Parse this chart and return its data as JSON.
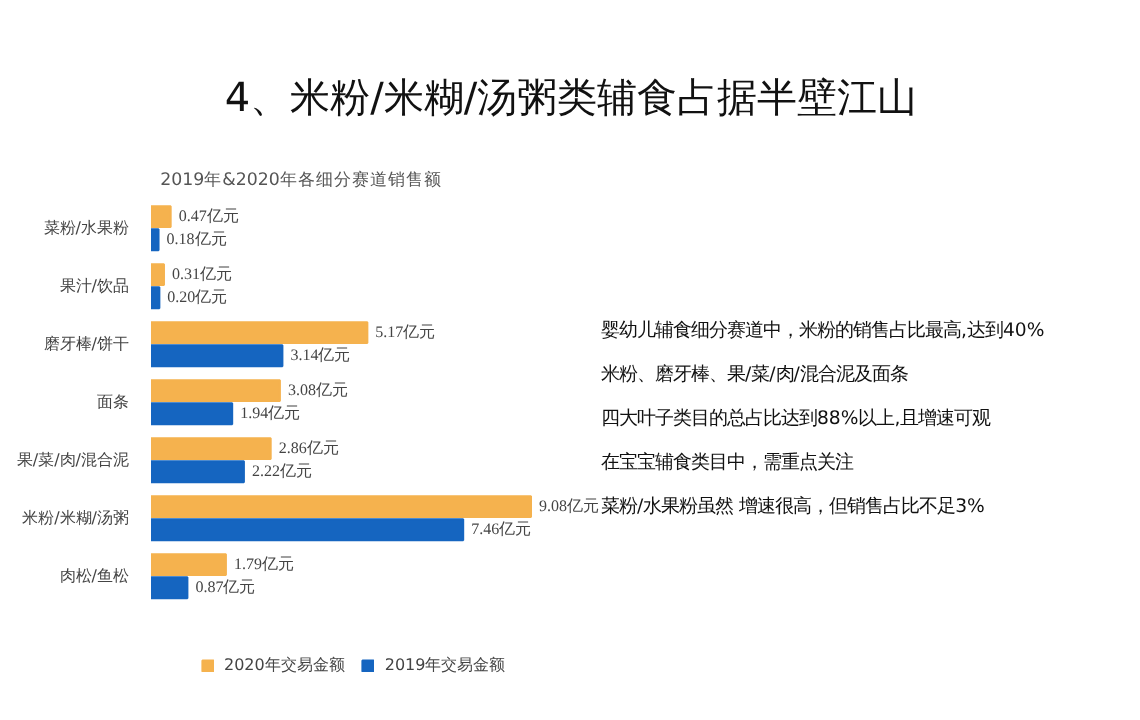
{
  "chart_data": {
    "type": "bar",
    "orientation": "horizontal",
    "title": "4、米粉/米糊/汤粥类辅食占据半壁江山",
    "subtitle": "2019年&2020年各细分赛道销售额",
    "categories": [
      "菜粉/水果粉",
      "果汁/饮品",
      "磨牙棒/饼干",
      "面条",
      "果/菜/肉/混合泥",
      "米粉/米糊/汤粥",
      "肉松/鱼松"
    ],
    "series": [
      {
        "name": "2020年交易金额",
        "color": "#f5b24e",
        "values": [
          0.47,
          0.31,
          5.17,
          3.08,
          2.86,
          9.08,
          1.79
        ],
        "value_labels": [
          "0.47亿元",
          "0.31亿元",
          "5.17亿元",
          "3.08亿元",
          "2.86亿元",
          "9.08亿元",
          "1.79亿元"
        ]
      },
      {
        "name": "2019年交易金额",
        "color": "#1565c0",
        "values": [
          0.18,
          0.2,
          3.14,
          1.94,
          2.22,
          7.46,
          0.87
        ],
        "value_labels": [
          "0.18亿元",
          "0.20亿元",
          "3.14亿元",
          "1.94亿元",
          "2.22亿元",
          "7.46亿元",
          "0.87亿元"
        ]
      }
    ],
    "legend": "bottom",
    "grid": false,
    "annotations": [
      "婴幼儿辅食细分赛道中，米粉的销售占比最高,达到40%",
      "米粉、磨牙棒、果/菜/肉/混合泥及面条",
      "四大叶子类目的总占比达到88%以上,且增速可观",
      " 在宝宝辅食类目中，需重点关注",
      "菜粉/水果粉虽然 增速很高，但销售占比不足3%"
    ]
  }
}
